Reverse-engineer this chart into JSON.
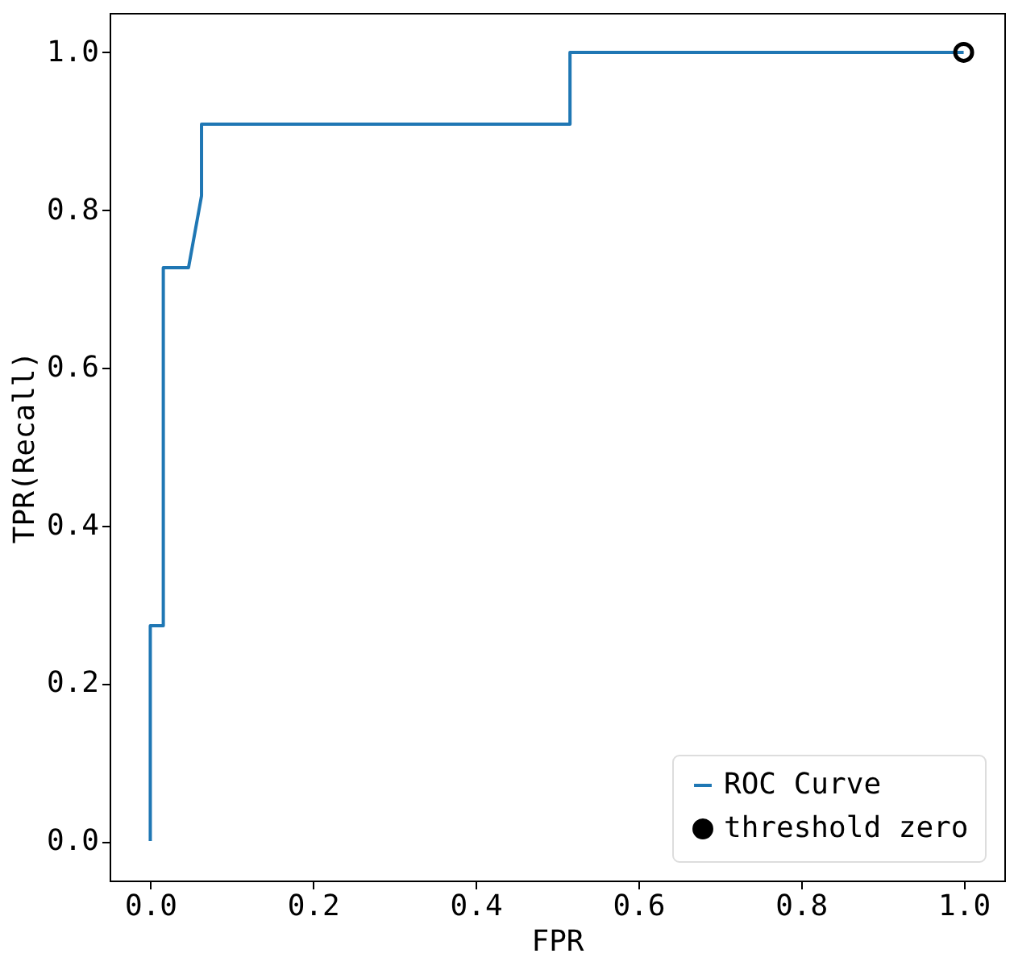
{
  "chart_data": {
    "type": "line",
    "xlabel": "FPR",
    "ylabel": "TPR(Recall)",
    "xlim": [
      -0.05,
      1.05
    ],
    "ylim": [
      -0.05,
      1.05
    ],
    "xticks": [
      {
        "value": 0,
        "label": "0.0"
      },
      0.2,
      0.4,
      0.6,
      0.8,
      {
        "value": 1,
        "label": "1.0"
      }
    ],
    "yticks": [
      {
        "value": 0,
        "label": "0.0"
      },
      0.2,
      0.4,
      0.6,
      0.8,
      {
        "value": 1,
        "label": "1.0"
      }
    ],
    "series": [
      {
        "name": "ROC Curve",
        "color": "#1f77b4",
        "x": [
          0,
          0,
          0.016,
          0.016,
          0.047,
          0.063,
          0.063,
          0.516,
          0.516,
          1
        ],
        "values": [
          0,
          0.273,
          0.273,
          0.727,
          0.727,
          0.818,
          0.909,
          0.909,
          1,
          1
        ]
      },
      {
        "name": "threshold zero",
        "type": "scatter",
        "color": "#000000",
        "marker": "circle",
        "x": [
          1
        ],
        "values": [
          1
        ]
      }
    ],
    "grid": false,
    "legend": "bottom right"
  }
}
